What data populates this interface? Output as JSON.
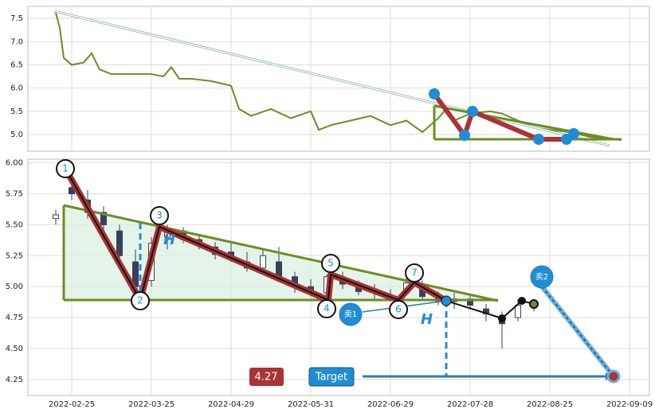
{
  "chart_data": [
    {
      "type": "line",
      "color": "#6b8e23",
      "x": [
        -4,
        -3,
        -2,
        0,
        3,
        5,
        7,
        10,
        15,
        20,
        23,
        25,
        27,
        30,
        35,
        40,
        42,
        45,
        50,
        55,
        60,
        62,
        65,
        70,
        75,
        80,
        84,
        88,
        92,
        94,
        96,
        100,
        105,
        108,
        112,
        116,
        120,
        125,
        130,
        135,
        138
      ],
      "values": [
        7.62,
        7.3,
        6.65,
        6.5,
        6.55,
        6.75,
        6.4,
        6.3,
        6.3,
        6.3,
        6.25,
        6.45,
        6.2,
        6.2,
        6.15,
        6.05,
        5.55,
        5.4,
        5.55,
        5.35,
        5.5,
        5.1,
        5.2,
        5.3,
        5.4,
        5.2,
        5.3,
        5.05,
        5.35,
        5.55,
        5.3,
        5.45,
        5.5,
        5.45,
        5.3,
        5.15,
        5.1,
        5.05,
        4.95,
        4.9,
        4.88
      ],
      "xlim": [
        -11,
        145
      ],
      "xticks": [
        0,
        20,
        40,
        60,
        80,
        100,
        120,
        140
      ],
      "ylim": [
        4.64,
        7.76
      ],
      "yticks": [
        {
          "value": 5.0,
          "label": "5.0"
        },
        5.5,
        {
          "value": 6.0,
          "label": "6.0"
        },
        6.5,
        {
          "value": 7.0,
          "label": "7.0"
        },
        7.5
      ],
      "grid": true
    },
    {
      "type": "candlestick",
      "up_color": "#ffffff",
      "down_color": "#3b3f5c",
      "x": [
        -4,
        0,
        4,
        8,
        12,
        16,
        20,
        24,
        28,
        32,
        36,
        40,
        44,
        48,
        52,
        56,
        60,
        64,
        68,
        72,
        76,
        80,
        84,
        88,
        92,
        96,
        100,
        104,
        108,
        112,
        116
      ],
      "open": [
        5.55,
        5.8,
        5.7,
        5.6,
        5.45,
        5.2,
        5.05,
        5.4,
        5.45,
        5.38,
        5.32,
        5.28,
        5.2,
        5.15,
        5.2,
        5.08,
        5.0,
        4.95,
        5.05,
        5.0,
        4.98,
        4.92,
        4.95,
        5.0,
        4.92,
        4.88,
        4.9,
        4.82,
        4.75,
        4.75,
        4.85
      ],
      "high": [
        5.62,
        5.92,
        5.78,
        5.65,
        5.5,
        5.3,
        5.4,
        5.5,
        5.48,
        5.42,
        5.36,
        5.35,
        5.28,
        5.3,
        5.32,
        5.12,
        5.06,
        5.1,
        5.12,
        5.05,
        5.02,
        4.98,
        5.08,
        5.05,
        4.96,
        4.95,
        4.93,
        4.86,
        4.8,
        4.9,
        4.9
      ],
      "low": [
        5.5,
        5.7,
        5.55,
        5.45,
        5.2,
        4.95,
        5.0,
        5.3,
        5.35,
        5.3,
        5.22,
        5.2,
        5.12,
        5.1,
        5.05,
        4.95,
        4.92,
        4.92,
        4.98,
        4.93,
        4.9,
        4.88,
        4.93,
        4.9,
        4.85,
        4.82,
        4.82,
        4.72,
        4.5,
        4.72,
        4.8
      ],
      "close": [
        5.58,
        5.75,
        5.6,
        5.5,
        5.25,
        5.0,
        5.35,
        5.45,
        5.38,
        5.33,
        5.26,
        5.22,
        5.15,
        5.25,
        5.08,
        5.0,
        4.97,
        5.08,
        5.02,
        4.96,
        4.95,
        4.93,
        5.03,
        4.92,
        4.88,
        4.9,
        4.85,
        4.78,
        4.7,
        4.85,
        4.86
      ],
      "xlim": [
        -11,
        145
      ],
      "xticks": [
        {
          "value": 0,
          "label": "2022-02-25"
        },
        {
          "value": 20,
          "label": "2022-03-25"
        },
        {
          "value": 40,
          "label": "2022-04-29"
        },
        {
          "value": 60,
          "label": "2022-05-31"
        },
        {
          "value": 80,
          "label": "2022-06-29"
        },
        {
          "value": 100,
          "label": "2022-07-28"
        },
        {
          "value": 120,
          "label": "2022-08-25"
        },
        {
          "value": 140,
          "label": "2022-09-09"
        }
      ],
      "ylim": [
        4.12,
        6.03
      ],
      "yticks": [
        4.25,
        {
          "value": 4.5,
          "label": "4.50"
        },
        4.75,
        {
          "value": 5.0,
          "label": "5.00"
        },
        5.25,
        {
          "value": 5.5,
          "label": "5.50"
        },
        5.75,
        {
          "value": 6.0,
          "label": "6.00"
        }
      ],
      "grid": true
    }
  ],
  "annotations": {
    "points": [
      "1",
      "2",
      "3",
      "4",
      "5",
      "6",
      "7"
    ],
    "sell": [
      "卖1",
      "卖2"
    ],
    "height_label": "H",
    "target_label": "Target",
    "target_value": 4.27
  }
}
